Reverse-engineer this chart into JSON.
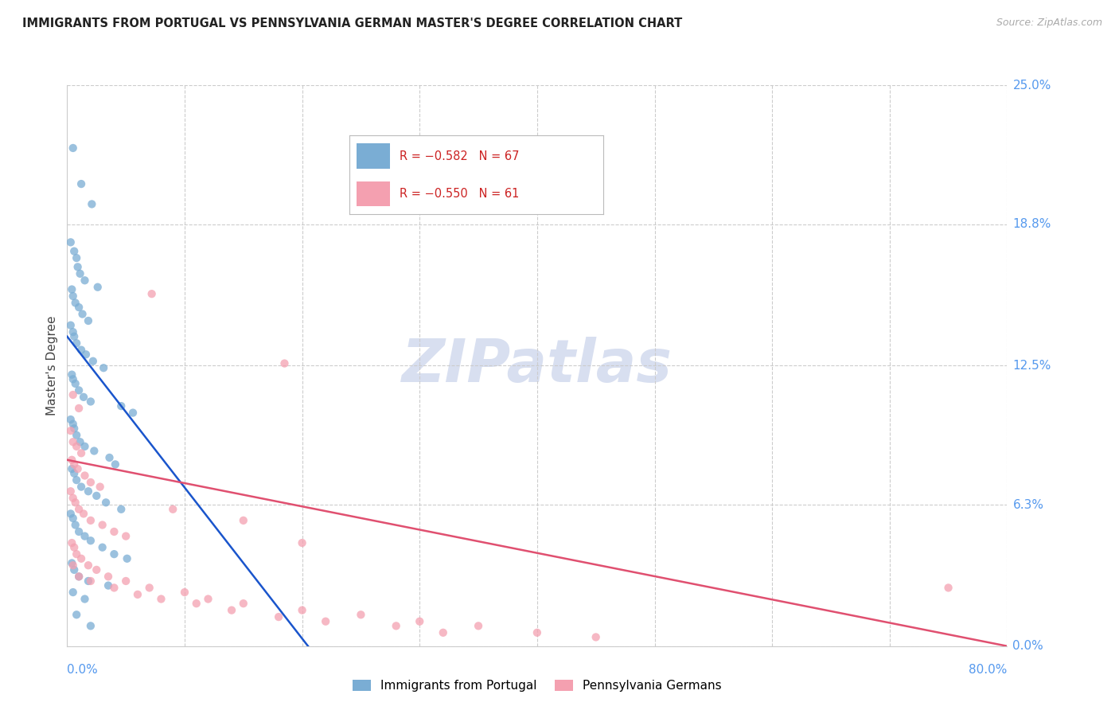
{
  "title": "IMMIGRANTS FROM PORTUGAL VS PENNSYLVANIA GERMAN MASTER'S DEGREE CORRELATION CHART",
  "source": "Source: ZipAtlas.com",
  "ylabel": "Master's Degree",
  "ytick_values": [
    0.0,
    6.3,
    12.5,
    18.8,
    25.0
  ],
  "ytick_labels": [
    "0.0%",
    "6.3%",
    "12.5%",
    "18.8%",
    "25.0%"
  ],
  "xlim": [
    0.0,
    80.0
  ],
  "ylim": [
    0.0,
    25.0
  ],
  "series1_color": "#7aadd4",
  "series2_color": "#f4a0b0",
  "series1_label": "Immigrants from Portugal",
  "series2_label": "Pennsylvania Germans",
  "blue_line_color": "#1a55cc",
  "pink_line_color": "#e05070",
  "watermark_text": "ZIPatlas",
  "watermark_color": "#d8dff0",
  "blue_scatter": [
    [
      0.5,
      22.2
    ],
    [
      1.2,
      20.6
    ],
    [
      2.1,
      19.7
    ],
    [
      0.3,
      18.0
    ],
    [
      0.6,
      17.6
    ],
    [
      0.8,
      17.3
    ],
    [
      0.9,
      16.9
    ],
    [
      1.1,
      16.6
    ],
    [
      1.5,
      16.3
    ],
    [
      2.6,
      16.0
    ],
    [
      0.4,
      15.9
    ],
    [
      0.5,
      15.6
    ],
    [
      0.7,
      15.3
    ],
    [
      1.0,
      15.1
    ],
    [
      1.3,
      14.8
    ],
    [
      1.8,
      14.5
    ],
    [
      0.3,
      14.3
    ],
    [
      0.5,
      14.0
    ],
    [
      0.6,
      13.8
    ],
    [
      0.8,
      13.5
    ],
    [
      1.2,
      13.2
    ],
    [
      1.6,
      13.0
    ],
    [
      2.2,
      12.7
    ],
    [
      3.1,
      12.4
    ],
    [
      0.4,
      12.1
    ],
    [
      0.5,
      11.9
    ],
    [
      0.7,
      11.7
    ],
    [
      1.0,
      11.4
    ],
    [
      1.4,
      11.1
    ],
    [
      2.0,
      10.9
    ],
    [
      4.6,
      10.7
    ],
    [
      5.6,
      10.4
    ],
    [
      0.3,
      10.1
    ],
    [
      0.5,
      9.9
    ],
    [
      0.6,
      9.7
    ],
    [
      0.8,
      9.4
    ],
    [
      1.1,
      9.1
    ],
    [
      1.5,
      8.9
    ],
    [
      2.3,
      8.7
    ],
    [
      3.6,
      8.4
    ],
    [
      4.1,
      8.1
    ],
    [
      0.4,
      7.9
    ],
    [
      0.6,
      7.7
    ],
    [
      0.8,
      7.4
    ],
    [
      1.2,
      7.1
    ],
    [
      1.8,
      6.9
    ],
    [
      2.5,
      6.7
    ],
    [
      3.3,
      6.4
    ],
    [
      4.6,
      6.1
    ],
    [
      0.3,
      5.9
    ],
    [
      0.5,
      5.7
    ],
    [
      0.7,
      5.4
    ],
    [
      1.0,
      5.1
    ],
    [
      1.5,
      4.9
    ],
    [
      2.0,
      4.7
    ],
    [
      3.0,
      4.4
    ],
    [
      4.0,
      4.1
    ],
    [
      5.1,
      3.9
    ],
    [
      0.4,
      3.7
    ],
    [
      0.6,
      3.4
    ],
    [
      1.0,
      3.1
    ],
    [
      1.8,
      2.9
    ],
    [
      3.5,
      2.7
    ],
    [
      0.5,
      2.4
    ],
    [
      1.5,
      2.1
    ],
    [
      0.8,
      1.4
    ],
    [
      2.0,
      0.9
    ]
  ],
  "pink_scatter": [
    [
      0.5,
      11.2
    ],
    [
      1.0,
      10.6
    ],
    [
      0.3,
      9.6
    ],
    [
      0.5,
      9.1
    ],
    [
      0.8,
      8.9
    ],
    [
      1.2,
      8.6
    ],
    [
      0.4,
      8.3
    ],
    [
      0.6,
      8.1
    ],
    [
      0.9,
      7.9
    ],
    [
      1.5,
      7.6
    ],
    [
      2.0,
      7.3
    ],
    [
      2.8,
      7.1
    ],
    [
      0.3,
      6.9
    ],
    [
      0.5,
      6.6
    ],
    [
      0.7,
      6.4
    ],
    [
      1.0,
      6.1
    ],
    [
      1.4,
      5.9
    ],
    [
      2.0,
      5.6
    ],
    [
      3.0,
      5.4
    ],
    [
      4.0,
      5.1
    ],
    [
      5.0,
      4.9
    ],
    [
      7.2,
      15.7
    ],
    [
      18.5,
      12.6
    ],
    [
      0.4,
      4.6
    ],
    [
      0.6,
      4.4
    ],
    [
      0.8,
      4.1
    ],
    [
      1.2,
      3.9
    ],
    [
      1.8,
      3.6
    ],
    [
      2.5,
      3.4
    ],
    [
      3.5,
      3.1
    ],
    [
      5.0,
      2.9
    ],
    [
      7.0,
      2.6
    ],
    [
      10.0,
      2.4
    ],
    [
      12.0,
      2.1
    ],
    [
      15.0,
      1.9
    ],
    [
      20.0,
      1.6
    ],
    [
      25.0,
      1.4
    ],
    [
      30.0,
      1.1
    ],
    [
      35.0,
      0.9
    ],
    [
      40.0,
      0.6
    ],
    [
      45.0,
      0.4
    ],
    [
      0.5,
      3.6
    ],
    [
      1.0,
      3.1
    ],
    [
      2.0,
      2.9
    ],
    [
      4.0,
      2.6
    ],
    [
      6.0,
      2.3
    ],
    [
      8.0,
      2.1
    ],
    [
      11.0,
      1.9
    ],
    [
      14.0,
      1.6
    ],
    [
      18.0,
      1.3
    ],
    [
      22.0,
      1.1
    ],
    [
      28.0,
      0.9
    ],
    [
      32.0,
      0.6
    ],
    [
      9.0,
      6.1
    ],
    [
      15.0,
      5.6
    ],
    [
      20.0,
      4.6
    ],
    [
      75.0,
      2.6
    ]
  ],
  "blue_line": [
    [
      0.0,
      13.8
    ],
    [
      20.5,
      0.0
    ]
  ],
  "pink_line": [
    [
      0.0,
      8.3
    ],
    [
      80.0,
      0.0
    ]
  ]
}
